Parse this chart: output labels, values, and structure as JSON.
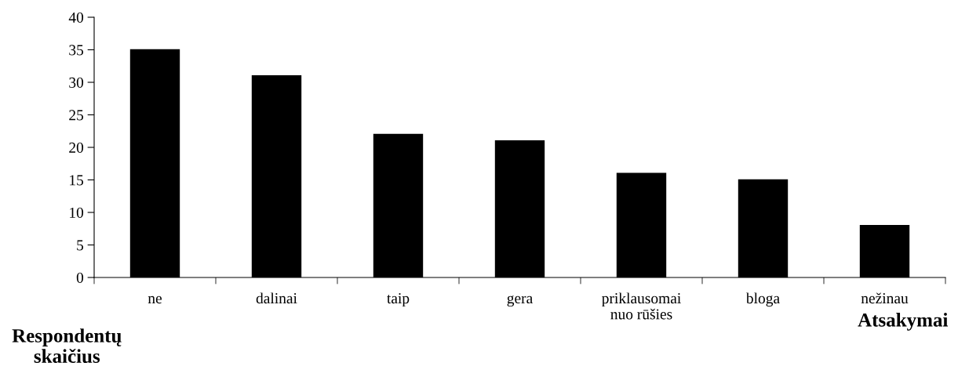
{
  "chart_data": {
    "type": "bar",
    "xlabel": "Atsakymai",
    "ylabel": "Respondentų\nskaičius",
    "categories": [
      "ne",
      "dalinai",
      "taip",
      "gera",
      "priklausomai\nnuo rūšies",
      "bloga",
      "nežinau"
    ],
    "values": [
      35,
      31,
      22,
      21,
      16,
      15,
      8
    ],
    "color": "#000000",
    "ylim": [
      0,
      40
    ],
    "yticks": [
      0,
      5,
      10,
      15,
      20,
      25,
      30,
      35,
      40
    ],
    "grid": false,
    "legend": false
  }
}
